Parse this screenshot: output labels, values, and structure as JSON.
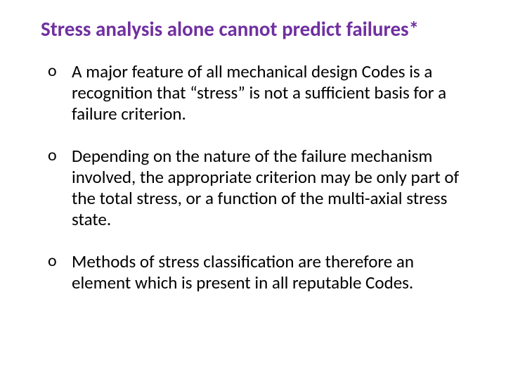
{
  "slide": {
    "title": "Stress analysis alone cannot predict failures*",
    "title_color": "#7030a0",
    "title_fontsize": 29,
    "title_fontweight": 700,
    "body_fontsize": 25,
    "body_color": "#000000",
    "background_color": "#ffffff",
    "bullet_marker": "o",
    "bullets": [
      "A major feature of all mechanical design Codes is a recognition that “stress” is not a sufficient basis for a failure criterion.",
      "Depending on the nature of the failure mechanism involved, the appropriate criterion may be only part of the total stress, or a function of the multi-axial stress state.",
      "Methods of stress classification are therefore an element which is present in all reputable Codes."
    ]
  }
}
